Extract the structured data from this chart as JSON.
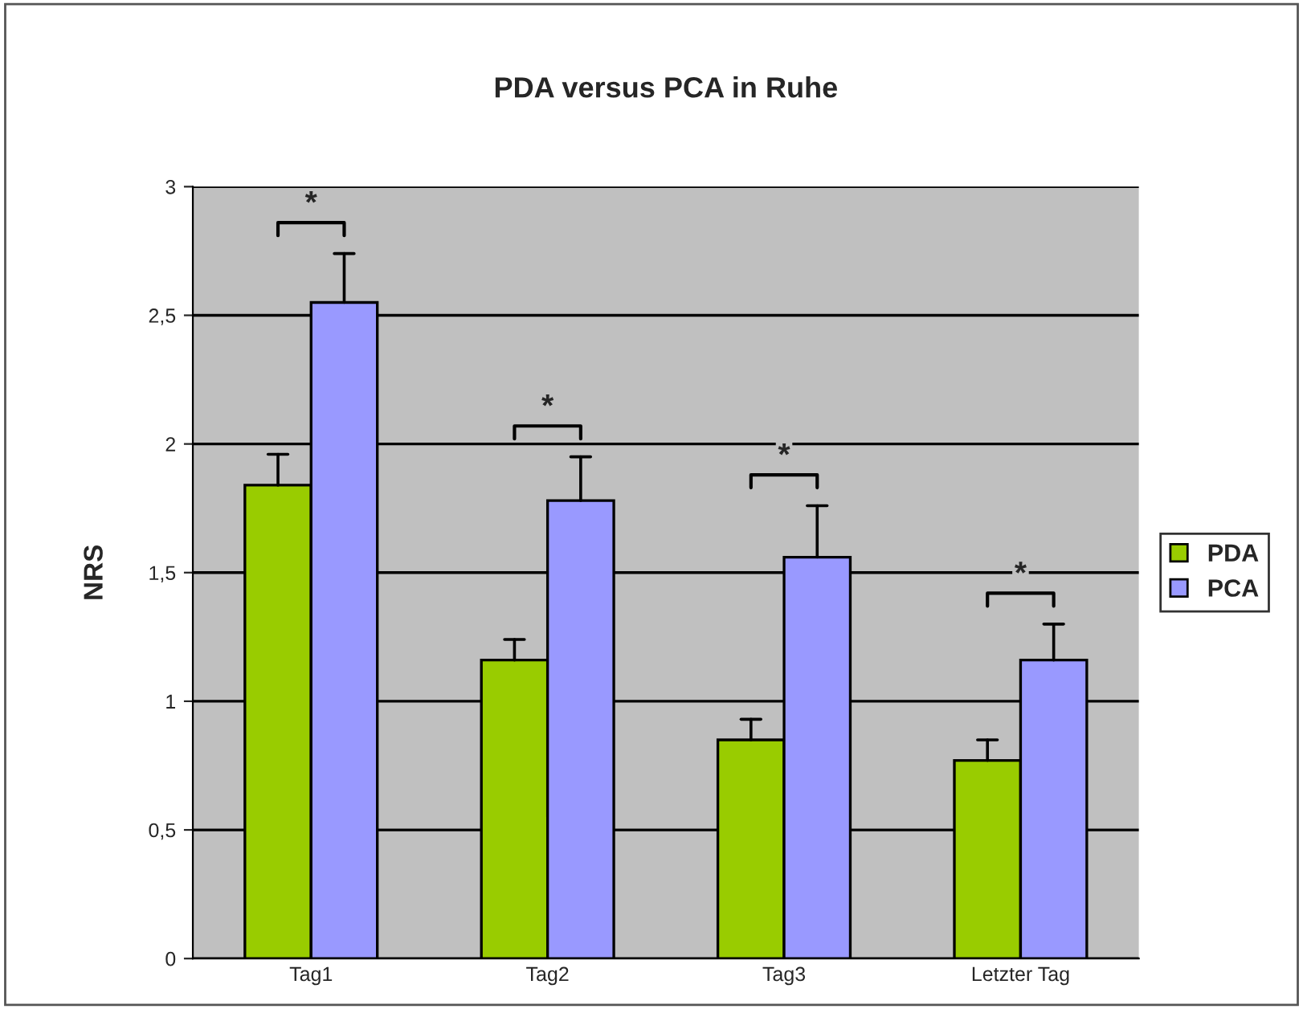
{
  "chart_data": {
    "type": "bar",
    "title": "PDA versus PCA in Ruhe",
    "ylabel": "NRS",
    "categories": [
      "Tag1",
      "Tag2",
      "Tag3",
      "Letzter Tag"
    ],
    "series": [
      {
        "name": "PDA",
        "color": "#99cc00",
        "values": [
          1.84,
          1.16,
          0.85,
          0.77
        ],
        "errors": [
          [
            1.84,
            1.96
          ],
          [
            1.16,
            1.24
          ],
          [
            0.85,
            0.93
          ],
          [
            0.77,
            0.85
          ]
        ]
      },
      {
        "name": "PCA",
        "color": "#9999ff",
        "values": [
          2.55,
          1.78,
          1.56,
          1.16
        ],
        "errors": [
          [
            2.55,
            2.74
          ],
          [
            1.78,
            1.95
          ],
          [
            1.56,
            1.76
          ],
          [
            1.16,
            1.3
          ]
        ]
      }
    ],
    "ylim": [
      0,
      3
    ],
    "yticks": [
      0,
      {
        "value": 0.5,
        "label": "0,5"
      },
      1,
      {
        "value": 1.5,
        "label": "1,5"
      },
      2,
      {
        "value": 2.5,
        "label": "2,5"
      },
      3
    ],
    "grid": "y",
    "legend": "right",
    "annotations": [
      "*",
      "*",
      "*",
      "*"
    ]
  }
}
